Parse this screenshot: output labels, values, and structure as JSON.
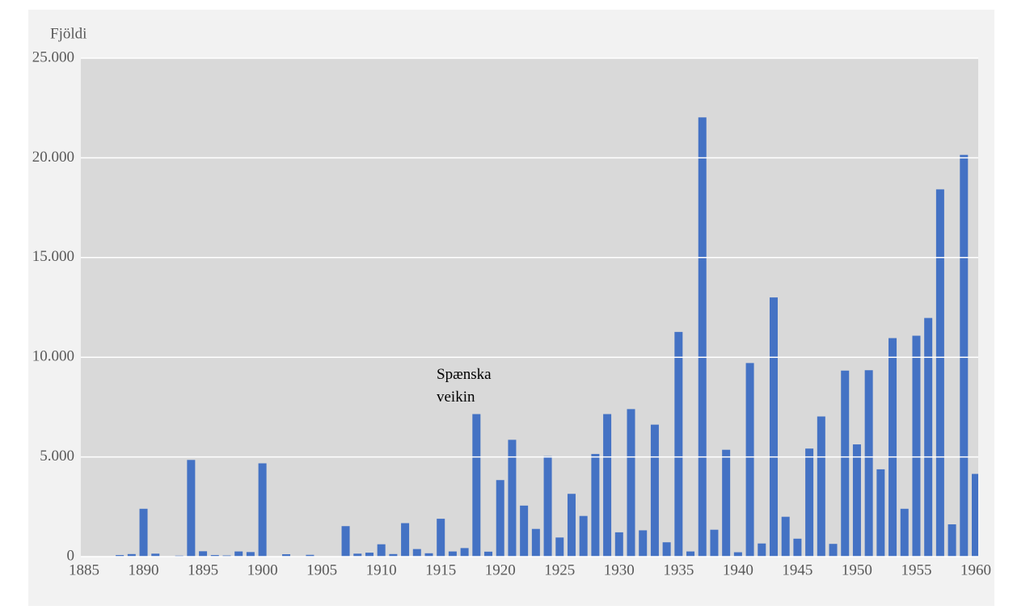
{
  "chart_data": {
    "type": "bar",
    "y_label": "Fjöldi",
    "annotation": "Spænska veikin",
    "color": "#4472c4",
    "grid": true,
    "x": [
      1885,
      1886,
      1887,
      1888,
      1889,
      1890,
      1891,
      1892,
      1893,
      1894,
      1895,
      1896,
      1897,
      1898,
      1899,
      1900,
      1901,
      1902,
      1903,
      1904,
      1905,
      1906,
      1907,
      1908,
      1909,
      1910,
      1911,
      1912,
      1913,
      1914,
      1915,
      1916,
      1917,
      1918,
      1919,
      1920,
      1921,
      1922,
      1923,
      1924,
      1925,
      1926,
      1927,
      1928,
      1929,
      1930,
      1931,
      1932,
      1933,
      1934,
      1935,
      1936,
      1937,
      1938,
      1939,
      1940,
      1941,
      1942,
      1943,
      1944,
      1945,
      1946,
      1947,
      1948,
      1949,
      1950,
      1951,
      1952,
      1953,
      1954,
      1955,
      1956,
      1957,
      1958,
      1959,
      1960
    ],
    "values": [
      0,
      0,
      0,
      80,
      130,
      2400,
      150,
      0,
      50,
      4850,
      270,
      80,
      60,
      260,
      230,
      4680,
      0,
      120,
      0,
      90,
      0,
      0,
      1530,
      150,
      200,
      620,
      130,
      1680,
      380,
      170,
      1900,
      260,
      430,
      7150,
      250,
      3840,
      5860,
      2560,
      1390,
      5040,
      960,
      3150,
      2040,
      5150,
      7150,
      1220,
      7400,
      1320,
      6620,
      720,
      11270,
      260,
      22030,
      1350,
      5360,
      220,
      9710,
      660,
      13000,
      2000,
      900,
      5420,
      7030,
      640,
      9330,
      5630,
      9350,
      4380,
      10960,
      2400,
      11080,
      11970,
      18420,
      1620,
      20150,
      4150
    ],
    "xlim": [
      1885,
      1960
    ],
    "xticks": [
      1885,
      1890,
      1895,
      1900,
      1905,
      1910,
      1915,
      1920,
      1925,
      1930,
      1935,
      1940,
      1945,
      1950,
      1955,
      1960
    ],
    "ylim": [
      0,
      25000
    ],
    "yticks": [
      0,
      {
        "value": 5000,
        "label": "5.000"
      },
      {
        "value": 10000,
        "label": "10.000"
      },
      {
        "value": 15000,
        "label": "15.000"
      },
      {
        "value": 20000,
        "label": "20.000"
      },
      {
        "value": 25000,
        "label": "25.000"
      }
    ]
  }
}
